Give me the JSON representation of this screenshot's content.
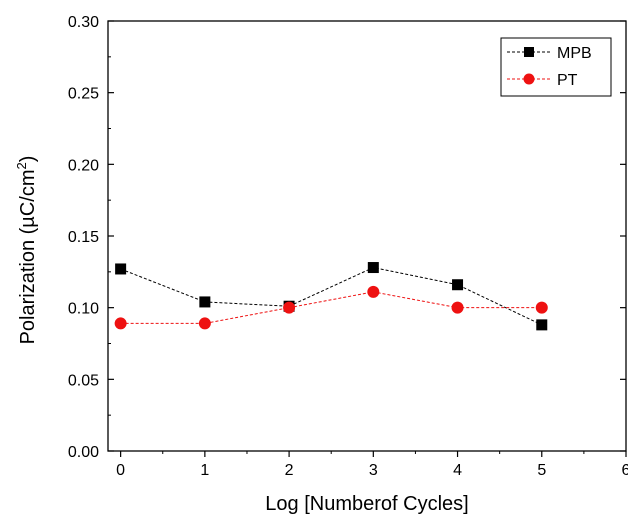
{
  "chart_data": {
    "type": "line",
    "title": "",
    "xlabel": "Log [Numberof Cycles]",
    "ylabel_main": "Polarization (",
    "ylabel_mu": "µ",
    "ylabel_unit": "C/cm",
    "ylabel_sup": "2",
    "ylabel_close": ")",
    "xlim": [
      -0.15,
      6
    ],
    "ylim": [
      0,
      0.3
    ],
    "x_ticks": [
      0,
      1,
      2,
      3,
      4,
      5,
      6
    ],
    "x_tick_labels": [
      "0",
      "1",
      "2",
      "3",
      "4",
      "5",
      "6"
    ],
    "y_ticks": [
      0,
      0.05,
      0.1,
      0.15,
      0.2,
      0.25,
      0.3
    ],
    "y_tick_labels": [
      "0.00",
      "0.05",
      "0.10",
      "0.15",
      "0.20",
      "0.25",
      "0.30"
    ],
    "grid": false,
    "legend_position": "top-right",
    "series": [
      {
        "name": "MPB",
        "marker": "square",
        "color": "#000000",
        "x": [
          0,
          1,
          2,
          3,
          4,
          5
        ],
        "y": [
          0.127,
          0.104,
          0.101,
          0.128,
          0.116,
          0.088
        ]
      },
      {
        "name": "PT",
        "marker": "circle",
        "color": "#ee1111",
        "x": [
          0,
          1,
          2,
          3,
          4,
          5
        ],
        "y": [
          0.089,
          0.089,
          0.1,
          0.111,
          0.1,
          0.1
        ]
      }
    ]
  }
}
